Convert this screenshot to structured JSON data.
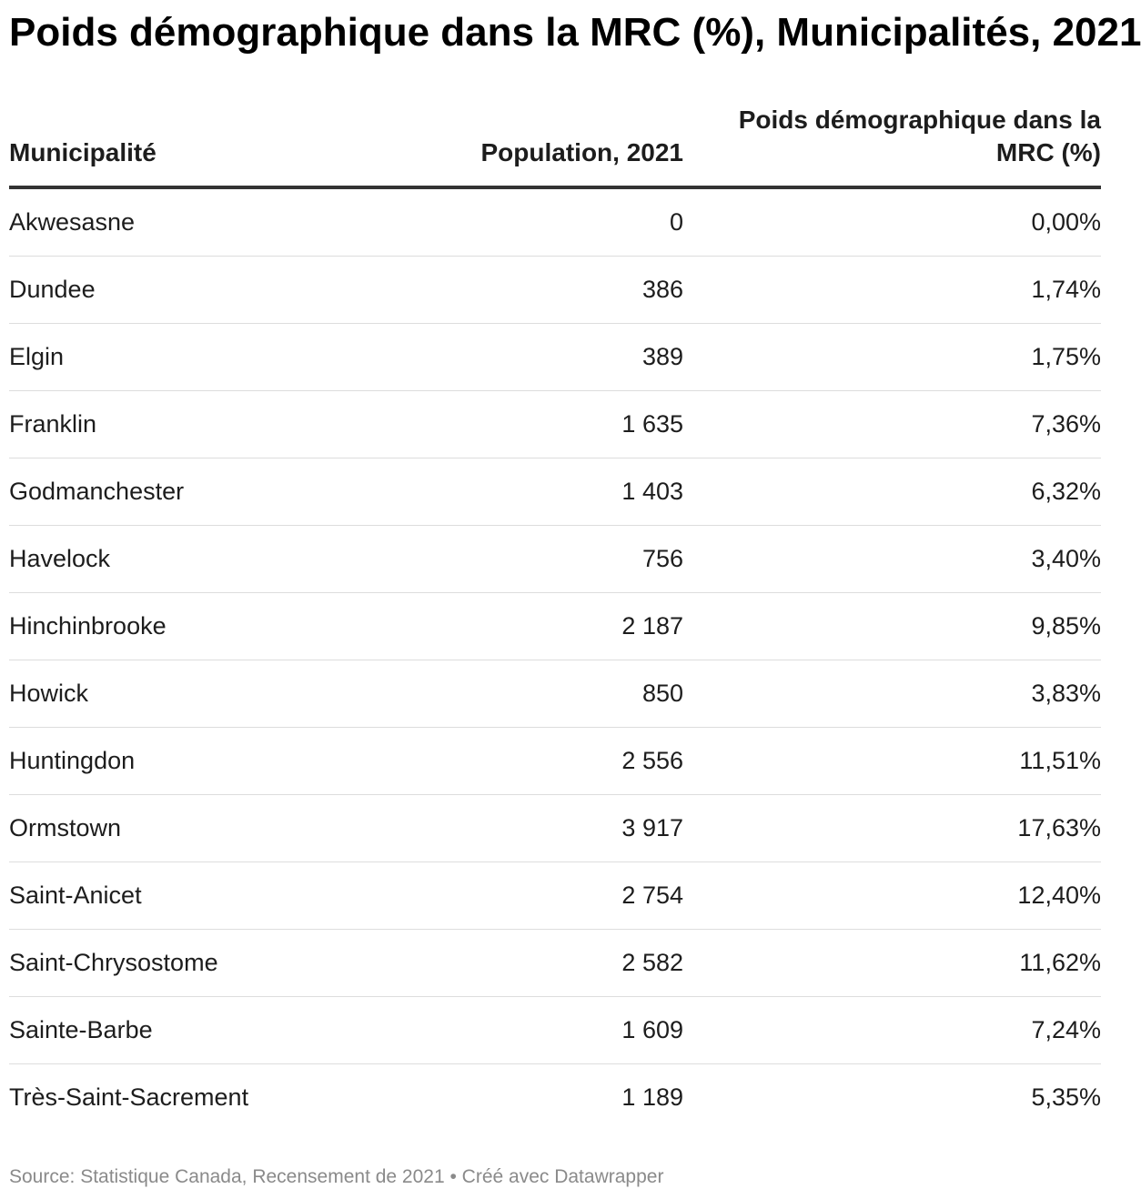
{
  "title": "Poids démographique dans la MRC (%), Municipalités, 2021",
  "footer": {
    "source": "Source: Statistique Canada, Recensement de 2021 • Créé avec Datawrapper"
  },
  "chart_data": {
    "type": "table",
    "title": "Poids démographique dans la MRC (%), Municipalités, 2021",
    "columns": [
      "Municipalité",
      "Population, 2021",
      "Poids démographique dans la MRC (%)"
    ],
    "rows": [
      [
        "Akwesasne",
        "0",
        "0,00%"
      ],
      [
        "Dundee",
        "386",
        "1,74%"
      ],
      [
        "Elgin",
        "389",
        "1,75%"
      ],
      [
        "Franklin",
        "1 635",
        "7,36%"
      ],
      [
        "Godmanchester",
        "1 403",
        "6,32%"
      ],
      [
        "Havelock",
        "756",
        "3,40%"
      ],
      [
        "Hinchinbrooke",
        "2 187",
        "9,85%"
      ],
      [
        "Howick",
        "850",
        "3,83%"
      ],
      [
        "Huntingdon",
        "2 556",
        "11,51%"
      ],
      [
        "Ormstown",
        "3 917",
        "17,63%"
      ],
      [
        "Saint-Anicet",
        "2 754",
        "12,40%"
      ],
      [
        "Saint-Chrysostome",
        "2 582",
        "11,62%"
      ],
      [
        "Sainte-Barbe",
        "1 609",
        "7,24%"
      ],
      [
        "Très-Saint-Sacrement",
        "1 189",
        "5,35%"
      ]
    ]
  }
}
